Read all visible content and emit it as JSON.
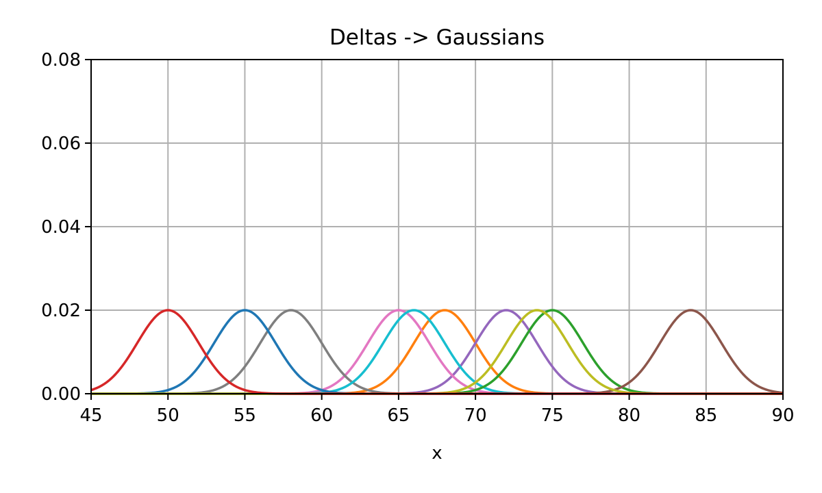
{
  "chart_data": {
    "type": "line",
    "title": "Deltas -> Gaussians",
    "xlabel": "x",
    "ylabel": "",
    "xlim": [
      45,
      90
    ],
    "ylim": [
      0,
      0.08
    ],
    "xticks": [
      45,
      50,
      55,
      60,
      65,
      70,
      75,
      80,
      85,
      90
    ],
    "xtick_labels": [
      "45",
      "50",
      "55",
      "60",
      "65",
      "70",
      "75",
      "80",
      "85",
      "90"
    ],
    "yticks": [
      0,
      0.02,
      0.04,
      0.06,
      0.08
    ],
    "ytick_labels": [
      "0.00",
      "0.02",
      "0.04",
      "0.06",
      "0.08"
    ],
    "grid": true,
    "legend": "none",
    "curve_shape": "gaussian",
    "peak_height": 0.02,
    "sigma": 2,
    "series": [
      {
        "mean": 68,
        "color": "#ff7f0e"
      },
      {
        "mean": 72,
        "color": "#9467bd"
      },
      {
        "mean": 65,
        "color": "#e377c2"
      },
      {
        "mean": 58,
        "color": "#7f7f7f"
      },
      {
        "mean": 66,
        "color": "#17becf"
      },
      {
        "mean": 55,
        "color": "#1f77b4"
      },
      {
        "mean": 75,
        "color": "#2ca02c"
      },
      {
        "mean": 84,
        "color": "#8c564b"
      },
      {
        "mean": 74,
        "color": "#bcbd22"
      },
      {
        "mean": 50,
        "color": "#d62728"
      }
    ]
  }
}
